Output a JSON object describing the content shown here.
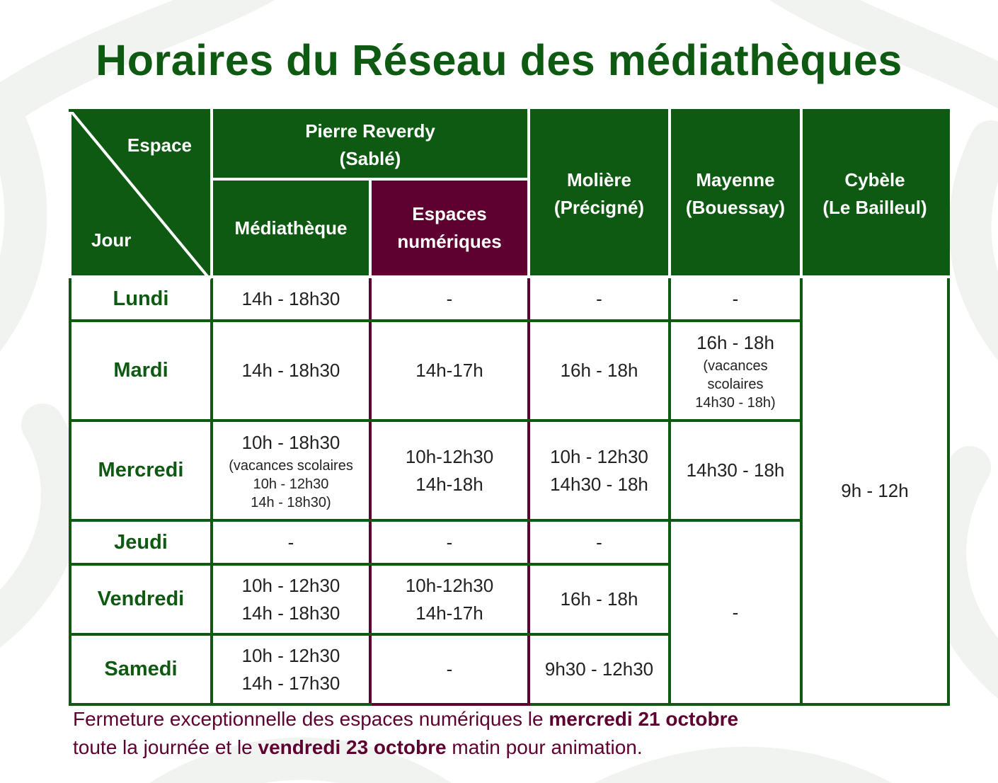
{
  "title": "Horaires du Réseau des médiathèques",
  "header": {
    "corner_top": "Espace",
    "corner_bottom": "Jour",
    "pierre_reverdy": [
      "Pierre Reverdy",
      "(Sablé)"
    ],
    "mediatheque": "Médiathèque",
    "espaces_numeriques": [
      "Espaces",
      "numériques"
    ],
    "moliere": [
      "Molière",
      "(Précigné)"
    ],
    "mayenne": [
      "Mayenne",
      "(Bouessay)"
    ],
    "cybele": [
      "Cybèle",
      "(Le Bailleul)"
    ]
  },
  "days": [
    "Lundi",
    "Mardi",
    "Mercredi",
    "Jeudi",
    "Vendredi",
    "Samedi"
  ],
  "rows": {
    "lundi": {
      "mediatheque": "14h - 18h30",
      "numeriques": "-",
      "moliere": "-",
      "mayenne": "-"
    },
    "mardi": {
      "mediatheque": "14h - 18h30",
      "numeriques": "14h-17h",
      "moliere": "16h - 18h",
      "mayenne": "16h - 18h",
      "mayenne_note": [
        "(vacances",
        "scolaires",
        "14h30 - 18h)"
      ]
    },
    "mercredi": {
      "mediatheque": "10h - 18h30",
      "mediatheque_note": [
        "(vacances scolaires",
        "10h - 12h30",
        "14h - 18h30)"
      ],
      "numeriques": [
        "10h-12h30",
        "14h-18h"
      ],
      "moliere": [
        "10h - 12h30",
        "14h30 - 18h"
      ],
      "mayenne": "14h30 - 18h"
    },
    "jeudi": {
      "mediatheque": "-",
      "numeriques": "-",
      "moliere": "-"
    },
    "vendredi": {
      "mediatheque": [
        "10h - 12h30",
        "14h - 18h30"
      ],
      "numeriques": [
        "10h-12h30",
        "14h-17h"
      ],
      "moliere": "16h - 18h"
    },
    "samedi": {
      "mediatheque": [
        "10h - 12h30",
        "14h - 17h30"
      ],
      "numeriques": "-",
      "moliere": "9h30 - 12h30"
    },
    "mayenne_jeudi_samedi": "-",
    "cybele_all": "9h - 12h"
  },
  "note": {
    "part1": "Fermeture exceptionnelle des espaces numériques le ",
    "bold1": "mercredi 21 octobre",
    "part2": "toute la journée et le ",
    "bold2": "vendredi 23 octobre",
    "part3": " matin pour animation."
  },
  "colors": {
    "green": "#0f5a12",
    "purple": "#5e0030"
  }
}
